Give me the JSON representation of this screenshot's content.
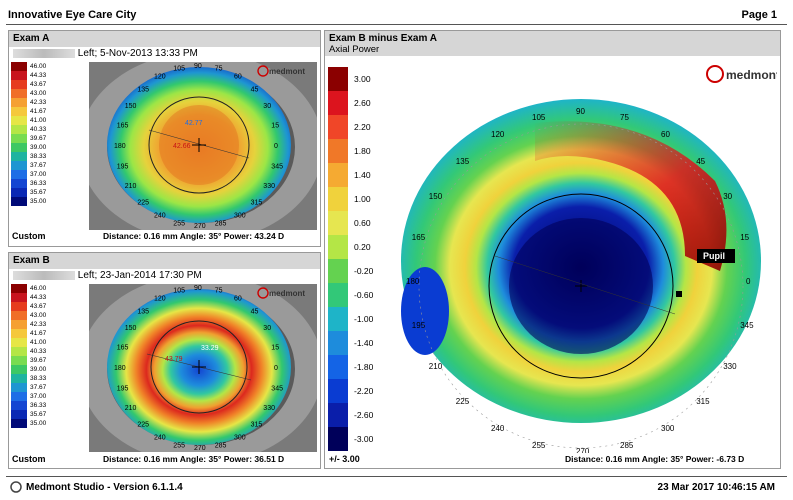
{
  "header": {
    "company": "Innovative Eye Care City",
    "page": "Page 1"
  },
  "exam_a": {
    "title": "Exam A",
    "subtitle": "Left; 5-Nov-2013 13:33 PM",
    "scale_mode": "Custom",
    "distance_info": "Distance: 0.16 mm Angle: 35° Power:  43.24 D",
    "callouts": [
      "42.77",
      "42.66"
    ]
  },
  "exam_b": {
    "title": "Exam B",
    "subtitle": "Left; 23-Jan-2014 17:30 PM",
    "scale_mode": "Custom",
    "distance_info": "Distance: 0.16 mm Angle: 35° Power:  36.51 D",
    "callouts": [
      "43.79",
      "33.29"
    ]
  },
  "diff": {
    "title": "Exam B minus Exam A",
    "subtitle": "Axial Power",
    "scale_footer": "+/- 3.00",
    "distance_info": "Distance: 0.16 mm Angle: 35° Power:   -6.73 D",
    "pupil_label": "Pupil"
  },
  "small_scale_labels": [
    "46.00",
    "44.33",
    "43.67",
    "43.00",
    "42.33",
    "41.67",
    "41.00",
    "40.33",
    "39.67",
    "39.00",
    "38.33",
    "37.67",
    "37.00",
    "36.33",
    "35.67",
    "35.00"
  ],
  "small_scale_colors": [
    "#8b0000",
    "#c8141e",
    "#e63c1e",
    "#f06e28",
    "#f5a032",
    "#f5c83c",
    "#e6e646",
    "#b4e646",
    "#78dc50",
    "#3cc864",
    "#1eb4a0",
    "#1e96d2",
    "#1e6ee6",
    "#1446d2",
    "#0a28b4",
    "#000a78"
  ],
  "big_scale_labels": [
    "3.00",
    "2.60",
    "2.20",
    "1.80",
    "1.40",
    "1.00",
    "0.60",
    "0.20",
    "-0.20",
    "-0.60",
    "-1.00",
    "-1.40",
    "-1.80",
    "-2.20",
    "-2.60",
    "-3.00"
  ],
  "big_scale_colors": [
    "#8b0000",
    "#dc141e",
    "#f04628",
    "#f07828",
    "#f5aa32",
    "#f0d23c",
    "#e6e650",
    "#b4e646",
    "#64d250",
    "#32c878",
    "#1eb4c8",
    "#1e8cdc",
    "#1464e6",
    "#0a3cd2",
    "#0a1eaa",
    "#00005a"
  ],
  "angles_small": [
    "90",
    "75",
    "60",
    "105",
    "120",
    "135",
    "150",
    "165",
    "180",
    "195",
    "210",
    "225",
    "240",
    "255",
    "270",
    "285",
    "300",
    "315",
    "330",
    "345",
    "0",
    "15",
    "30",
    "45"
  ],
  "angles_big": [
    "105",
    "90",
    "75",
    "60",
    "45",
    "120",
    "135",
    "150",
    "165",
    "180",
    "195",
    "210",
    "225",
    "240",
    "255",
    "270",
    "285",
    "300",
    "315",
    "330",
    "345",
    "0",
    "15",
    "30"
  ],
  "brand": "medmont",
  "footer": {
    "app": "Medmont Studio - Version 6.1.1.4",
    "timestamp": "23 Mar 2017 10:46:15 AM"
  }
}
